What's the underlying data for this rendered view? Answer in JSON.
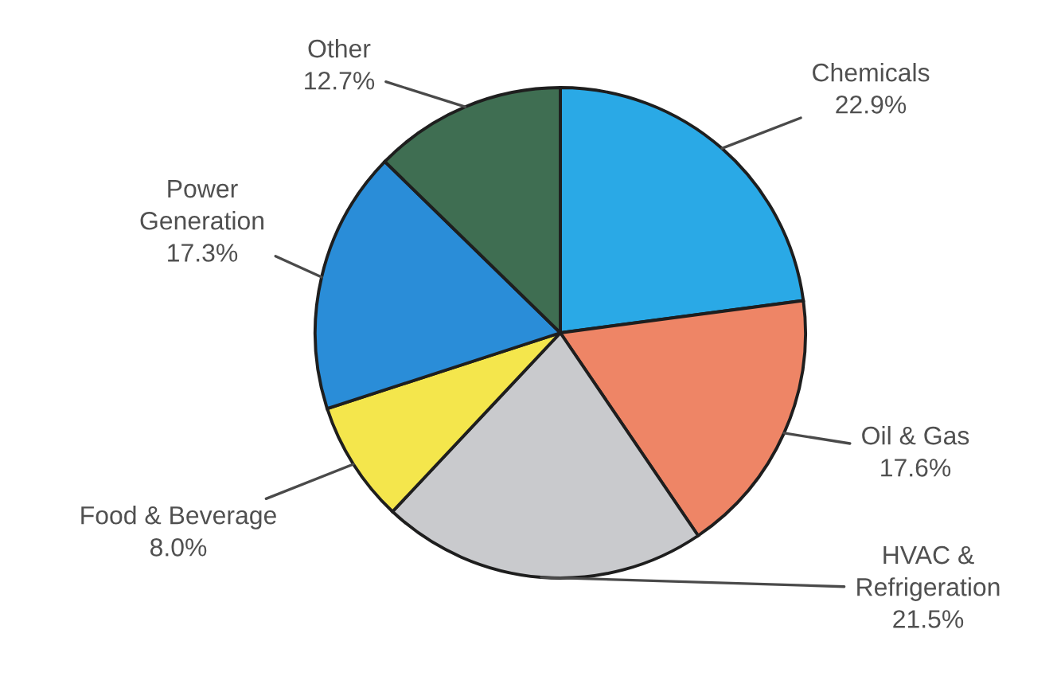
{
  "chart_data": {
    "type": "pie",
    "categories": [
      "Chemicals",
      "Oil & Gas",
      "HVAC & Refrigeration",
      "Food & Beverage",
      "Power Generation",
      "Other"
    ],
    "values": [
      22.9,
      17.6,
      21.5,
      8.0,
      17.3,
      12.7
    ],
    "value_labels": [
      "22.9%",
      "17.6%",
      "21.5%",
      "8.0%",
      "17.3%",
      "12.7%"
    ],
    "colors": [
      "#2aa9e6",
      "#ee8566",
      "#c9cacd",
      "#f4e64c",
      "#2a8dd8",
      "#3f6e52"
    ]
  }
}
